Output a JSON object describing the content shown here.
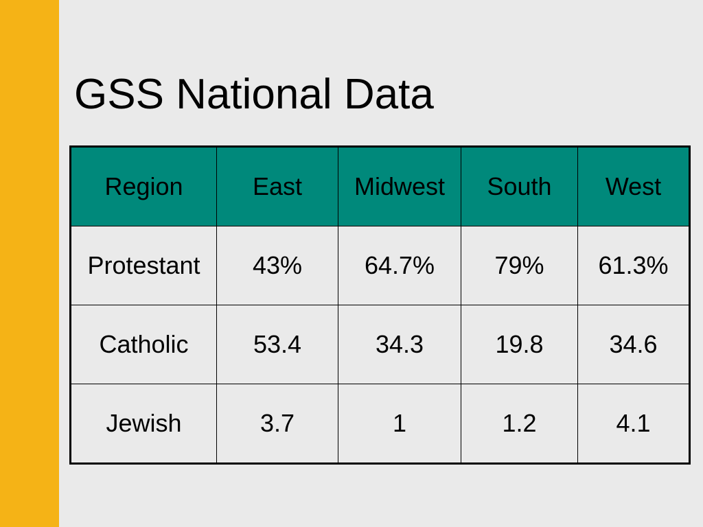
{
  "slide": {
    "title": "GSS National Data"
  },
  "colors": {
    "side_bar": "#f5b316",
    "header_fill": "#00897b",
    "background": "#eaeaea"
  },
  "table": {
    "headers": [
      "Region",
      "East",
      "Midwest",
      "South",
      "West"
    ],
    "rows": [
      [
        "Protestant",
        "43%",
        "64.7%",
        "79%",
        "61.3%"
      ],
      [
        "Catholic",
        "53.4",
        "34.3",
        "19.8",
        "34.6"
      ],
      [
        "Jewish",
        "3.7",
        "1",
        "1.2",
        "4.1"
      ]
    ]
  }
}
